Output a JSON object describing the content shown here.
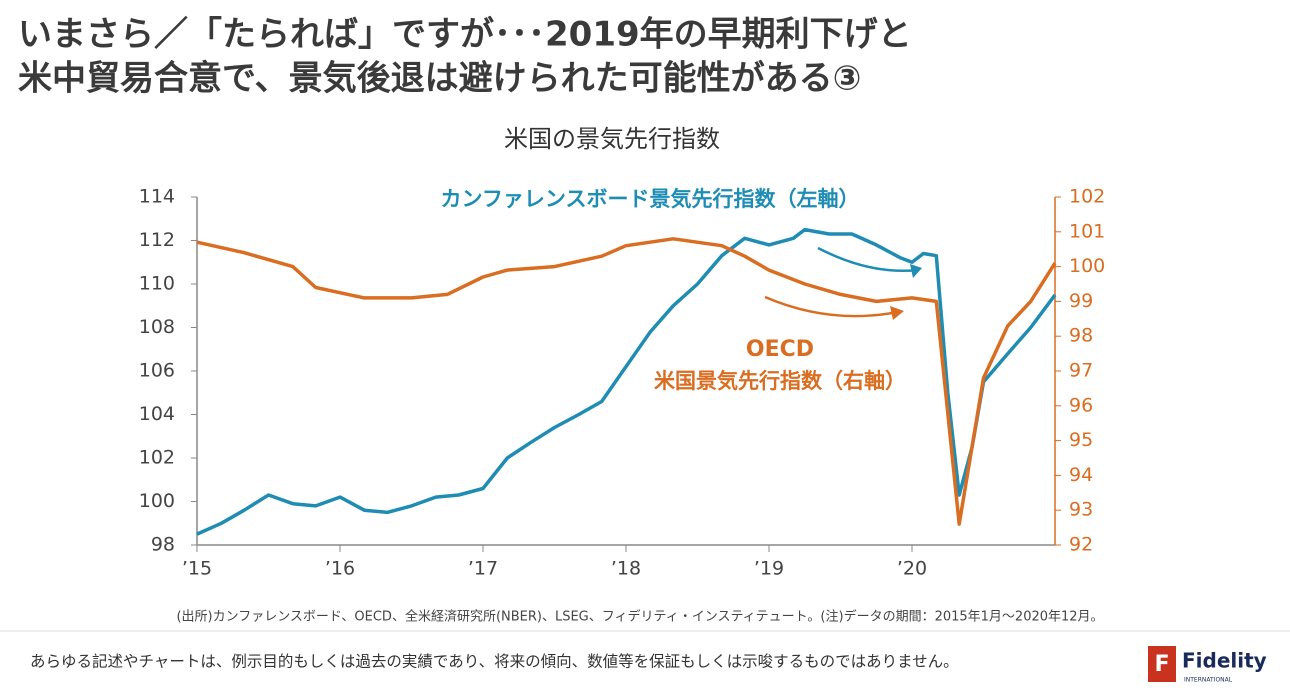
{
  "header": {
    "title_lines": [
      "いまさら／「たられば」ですが･･･2019年の早期利下げと",
      "米中貿易合意で、景気後退は避けられた可能性がある③"
    ]
  },
  "chart_data": {
    "type": "line",
    "title": "米国の景気先行指数",
    "annotations": [
      "カンファレンスボード景気先行指数（左軸）",
      "OECD",
      "米国景気先行指数（右軸）"
    ],
    "xlim": [
      2015,
      2021
    ],
    "xticks": [
      {
        "value": 2015,
        "label": "’15"
      },
      {
        "value": 2016,
        "label": "’16"
      },
      {
        "value": 2017,
        "label": "’17"
      },
      {
        "value": 2018,
        "label": "’18"
      },
      {
        "value": 2019,
        "label": "’19"
      },
      {
        "value": 2020,
        "label": "’20"
      }
    ],
    "ylim": [
      98,
      114
    ],
    "yticks": [
      98,
      100,
      102,
      104,
      106,
      108,
      110,
      112,
      114
    ],
    "y2lim": [
      92,
      102
    ],
    "y2ticks": [
      92,
      93,
      94,
      95,
      96,
      97,
      98,
      99,
      100,
      101,
      102
    ],
    "series": [
      {
        "name": "カンファレンスボード景気先行指数",
        "color": "#1f8db3",
        "x": [
          2015.0,
          2015.17,
          2015.33,
          2015.5,
          2015.67,
          2015.83,
          2016.0,
          2016.17,
          2016.33,
          2016.5,
          2016.67,
          2016.83,
          2017.0,
          2017.17,
          2017.33,
          2017.5,
          2017.67,
          2017.83,
          2018.0,
          2018.17,
          2018.33,
          2018.5,
          2018.67,
          2018.83,
          2019.0,
          2019.17,
          2019.25,
          2019.42,
          2019.58,
          2019.75,
          2019.92,
          2020.0,
          2020.08,
          2020.17,
          2020.25,
          2020.33,
          2020.42,
          2020.5,
          2020.67,
          2020.83,
          2021.0
        ],
        "values": [
          98.5,
          99.0,
          99.6,
          100.3,
          99.9,
          99.8,
          100.2,
          99.6,
          99.5,
          99.8,
          100.2,
          100.3,
          100.6,
          102.0,
          102.7,
          103.4,
          104.0,
          104.6,
          106.2,
          107.8,
          109.0,
          110.0,
          111.3,
          112.1,
          111.8,
          112.1,
          112.5,
          112.3,
          112.3,
          111.8,
          111.2,
          111.0,
          111.4,
          111.3,
          105.0,
          100.3,
          102.5,
          105.5,
          106.8,
          108.0,
          109.5
        ]
      },
      {
        "name": "OECD米国景気先行指数",
        "color": "#d96d21",
        "axis": "y2",
        "x": [
          2015.0,
          2015.33,
          2015.67,
          2015.83,
          2016.17,
          2016.5,
          2016.75,
          2017.0,
          2017.17,
          2017.5,
          2017.83,
          2018.0,
          2018.33,
          2018.67,
          2018.83,
          2019.0,
          2019.25,
          2019.5,
          2019.75,
          2020.0,
          2020.17,
          2020.33,
          2020.5,
          2020.67,
          2020.83,
          2021.0
        ],
        "values": [
          100.7,
          100.4,
          100.0,
          99.4,
          99.1,
          99.1,
          99.2,
          99.7,
          99.9,
          100.0,
          100.3,
          100.6,
          100.8,
          100.6,
          100.3,
          99.9,
          99.5,
          99.2,
          99.0,
          99.1,
          99.0,
          92.6,
          96.8,
          98.3,
          99.0,
          100.1
        ]
      }
    ]
  },
  "footer": {
    "source": "(出所)カンファレンスボード、OECD、全米経済研究所(NBER)、LSEG、フィデリティ・インスティテュート。(注)データの期間：2015年1月～2020年12月。",
    "disclaimer": "あらゆる記述やチャートは、例示目的もしくは過去の実績であり、将来の傾向、数値等を保証もしくは示唆するものではありません。",
    "logo": "Fidelity",
    "logo_sub": "INTERNATIONAL"
  }
}
